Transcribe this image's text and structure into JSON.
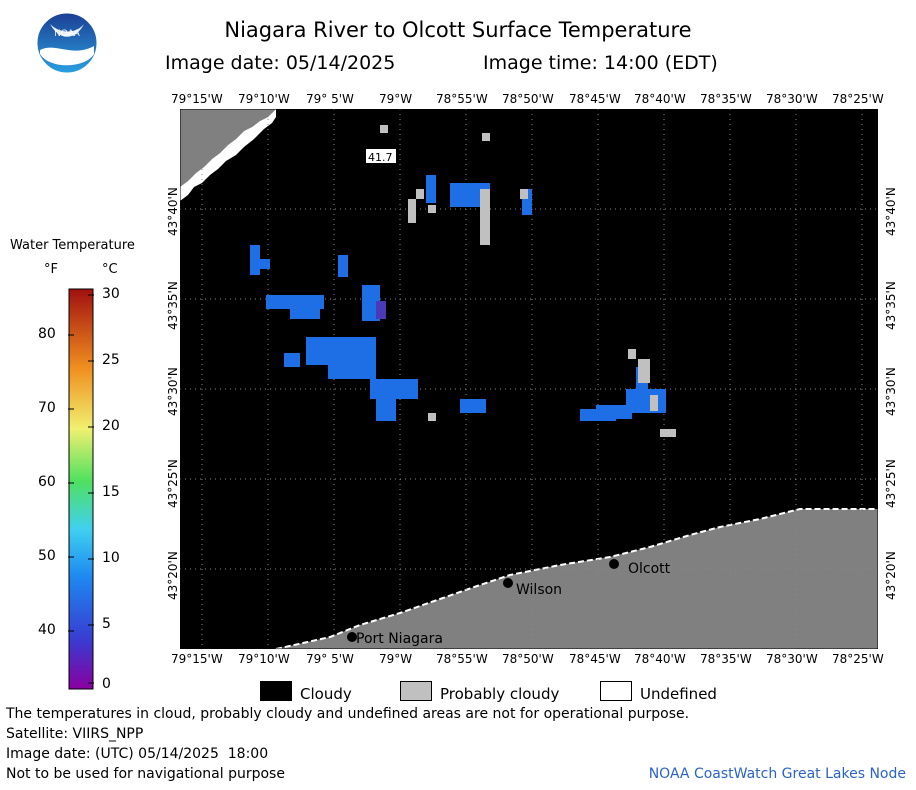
{
  "header": {
    "title": "Niagara River to Olcott Surface Temperature",
    "image_date": "Image date: 05/14/2025",
    "image_time": "Image time: 14:00 (EDT)"
  },
  "logo": {
    "text": "NOAA",
    "icon": "noaa-logo-icon"
  },
  "map": {
    "lon_labels": [
      "79°15'W",
      "79°10'W",
      "79° 5'W",
      "79°W",
      "78°55'W",
      "78°50'W",
      "78°45'W",
      "78°40'W",
      "78°35'W",
      "78°30'W",
      "78°25'W"
    ],
    "lat_labels": [
      "43°40'N",
      "43°35'N",
      "43°30'N",
      "43°25'N",
      "43°20'N"
    ],
    "places": {
      "olcott": "Olcott",
      "wilson": "Wilson",
      "port_niagara": "Port Niagara"
    },
    "reading": "41.7",
    "colors": {
      "cloud": "#000000",
      "land": "#808080",
      "probably_cloudy": "#c0c0c0",
      "water_cold": "#1e6fe6",
      "grid": "#888888"
    }
  },
  "legend": {
    "title": "Water Temperature",
    "unit_f": "°F",
    "unit_c": "°C",
    "f_ticks": [
      "80",
      "70",
      "60",
      "50",
      "40"
    ],
    "c_ticks": [
      "30",
      "25",
      "20",
      "15",
      "10",
      "5",
      "0"
    ],
    "colorbar_c_range": [
      0,
      30
    ]
  },
  "key": {
    "cloudy": "Cloudy",
    "probably_cloudy": "Probably cloudy",
    "undefined": "Undefined"
  },
  "footer": {
    "note": "The temperatures in cloud, probably cloudy and undefined areas are not for operational purpose.",
    "satellite": "Satellite: VIIRS_NPP",
    "utc_date": "Image date: (UTC) 05/14/2025  18:00",
    "nav_warning": "Not to be used for navigational purpose",
    "credit": "NOAA CoastWatch Great Lakes Node"
  }
}
